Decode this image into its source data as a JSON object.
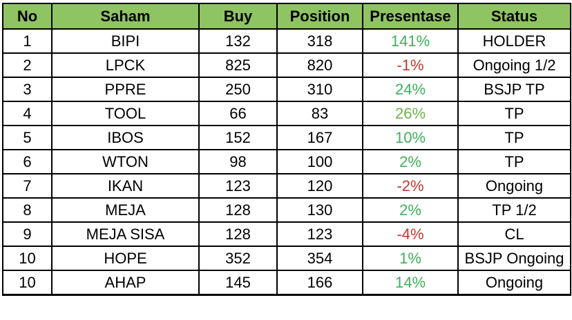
{
  "table": {
    "headers": [
      "No",
      "Saham",
      "Buy",
      "Position",
      "Presentase",
      "Status"
    ],
    "rows": [
      {
        "no": "1",
        "saham": "BIPI",
        "buy": "132",
        "position": "318",
        "presentase": "141%",
        "status": "HOLDER",
        "trend": "pos"
      },
      {
        "no": "2",
        "saham": "LPCK",
        "buy": "825",
        "position": "820",
        "presentase": "-1%",
        "status": "Ongoing 1/2",
        "trend": "neg"
      },
      {
        "no": "3",
        "saham": "PPRE",
        "buy": "250",
        "position": "310",
        "presentase": "24%",
        "status": "BSJP TP",
        "trend": "pos"
      },
      {
        "no": "4",
        "saham": "TOOL",
        "buy": "66",
        "position": "83",
        "presentase": "26%",
        "status": "TP",
        "trend": "pos-mid"
      },
      {
        "no": "5",
        "saham": "IBOS",
        "buy": "152",
        "position": "167",
        "presentase": "10%",
        "status": "TP",
        "trend": "pos"
      },
      {
        "no": "6",
        "saham": "WTON",
        "buy": "98",
        "position": "100",
        "presentase": "2%",
        "status": "TP",
        "trend": "pos"
      },
      {
        "no": "7",
        "saham": "IKAN",
        "buy": "123",
        "position": "120",
        "presentase": "-2%",
        "status": "Ongoing",
        "trend": "neg"
      },
      {
        "no": "8",
        "saham": "MEJA",
        "buy": "128",
        "position": "130",
        "presentase": "2%",
        "status": "TP 1/2",
        "trend": "pos"
      },
      {
        "no": "9",
        "saham": "MEJA SISA",
        "buy": "128",
        "position": "123",
        "presentase": "-4%",
        "status": "CL",
        "trend": "neg"
      },
      {
        "no": "10",
        "saham": "HOPE",
        "buy": "352",
        "position": "354",
        "presentase": "1%",
        "status": "BSJP Ongoing",
        "trend": "pos"
      },
      {
        "no": "10",
        "saham": "AHAP",
        "buy": "145",
        "position": "166",
        "presentase": "14%",
        "status": "Ongoing",
        "trend": "pos"
      }
    ]
  },
  "colors": {
    "header_bg": "#8fc462",
    "positive": "#3fae5a",
    "negative": "#c0392b",
    "border": "#000000"
  }
}
